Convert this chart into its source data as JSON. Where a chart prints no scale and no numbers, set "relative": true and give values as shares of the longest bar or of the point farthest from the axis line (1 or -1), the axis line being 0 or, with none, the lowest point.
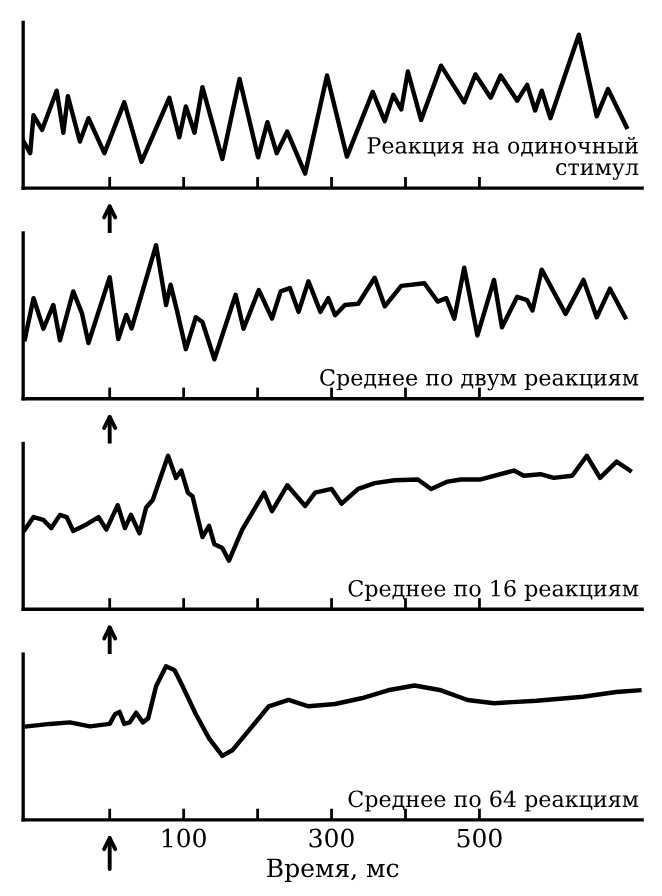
{
  "chart_data": [
    {
      "type": "line",
      "relative": true,
      "annotations": [
        "Реакция на одиночный\nстимул"
      ],
      "xlim": [
        -117,
        720
      ],
      "xticks": [
        {
          "value": 0,
          "label": null
        },
        {
          "value": 100,
          "label": null
        },
        {
          "value": 200,
          "label": null
        },
        {
          "value": 300,
          "label": null
        },
        {
          "value": 400,
          "label": null
        },
        {
          "value": 500,
          "label": null
        }
      ],
      "tick_labels": false,
      "grid": false,
      "marker": "none",
      "line_style": "solid",
      "series": [
        {
          "color": "#000000",
          "x": [
            -116.5,
            -107.5,
            -103,
            -91.4,
            -71.7,
            -62.7,
            -56.5,
            -40.3,
            -28.7,
            -7.2,
            19.7,
            43.0,
            80.6,
            94.1,
            103.0,
            114.7,
            125.4,
            152.3,
            175.6,
            200.7,
            213.3,
            225.8,
            240.1,
            264.3,
            293.9,
            320.8,
            355.7,
            371.9,
            383.5,
            394.3,
            403.2,
            421.1,
            448.0,
            479.4,
            494.6,
            515.2,
            528.7,
            551.1,
            564.5,
            575.3,
            584.2,
            595.9,
            634.4,
            658.6,
            673.8,
            698.9
          ],
          "values": [
            0.304,
            0.228,
            0.475,
            0.38,
            0.635,
            0.361,
            0.599,
            0.304,
            0.456,
            0.228,
            0.559,
            0.171,
            0.589,
            0.331,
            0.532,
            0.361,
            0.658,
            0.19,
            0.711,
            0.201,
            0.43,
            0.228,
            0.369,
            0.095,
            0.734,
            0.205,
            0.627,
            0.437,
            0.608,
            0.513,
            0.76,
            0.445,
            0.798,
            0.559,
            0.741,
            0.589,
            0.734,
            0.57,
            0.673,
            0.506,
            0.635,
            0.456,
            1.0,
            0.468,
            0.646,
            0.399
          ]
        }
      ]
    },
    {
      "type": "line",
      "relative": true,
      "annotations": [
        "Среднее по двум реакциям"
      ],
      "xlim": [
        -117,
        720
      ],
      "xticks": [
        {
          "value": 0,
          "label": null
        },
        {
          "value": 100,
          "label": null
        },
        {
          "value": 200,
          "label": null
        },
        {
          "value": 300,
          "label": null
        },
        {
          "value": 400,
          "label": null
        },
        {
          "value": 500,
          "label": null
        }
      ],
      "tick_labels": false,
      "grid": false,
      "marker": "none",
      "line_style": "solid",
      "series": [
        {
          "color": "#000000",
          "x": [
            -114.7,
            -103.0,
            -89.6,
            -76.2,
            -67.2,
            -49.3,
            -37.6,
            -28.7,
            0,
            11.6,
            22.4,
            29.6,
            62.7,
            76.2,
            82.4,
            91.4,
            103.0,
            116.5,
            125.4,
            141.6,
            170.3,
            181.0,
            201.6,
            219.5,
            231.2,
            243.7,
            255.4,
            268.8,
            284.9,
            295.7,
            304.7,
            318.1,
            336.0,
            358.4,
            371.9,
            394.3,
            425.6,
            443.5,
            455.2,
            466.0,
            479.4,
            497.3,
            519.7,
            530.5,
            551.1,
            564.5,
            571.7,
            584.2,
            616.5,
            640.7,
            658.6,
            676.5,
            697.1
          ],
          "values": [
            0.389,
            0.655,
            0.456,
            0.611,
            0.381,
            0.699,
            0.558,
            0.363,
            0.792,
            0.389,
            0.546,
            0.458,
            1.0,
            0.611,
            0.743,
            0.566,
            0.323,
            0.531,
            0.5,
            0.257,
            0.677,
            0.456,
            0.708,
            0.522,
            0.699,
            0.721,
            0.566,
            0.765,
            0.566,
            0.655,
            0.544,
            0.611,
            0.619,
            0.788,
            0.602,
            0.735,
            0.752,
            0.633,
            0.655,
            0.522,
            0.854,
            0.412,
            0.774,
            0.465,
            0.664,
            0.642,
            0.575,
            0.841,
            0.553,
            0.774,
            0.531,
            0.717,
            0.531
          ]
        }
      ]
    },
    {
      "type": "line",
      "relative": true,
      "annotations": [
        "Среднее по 16 реакциям"
      ],
      "xlim": [
        -117,
        720
      ],
      "xticks": [
        {
          "value": 0,
          "label": null
        },
        {
          "value": 100,
          "label": null
        },
        {
          "value": 200,
          "label": null
        },
        {
          "value": 300,
          "label": null
        },
        {
          "value": 400,
          "label": null
        },
        {
          "value": 500,
          "label": null
        }
      ],
      "tick_labels": false,
      "grid": false,
      "marker": "none",
      "line_style": "solid",
      "series": [
        {
          "color": "#000000",
          "x": [
            -114.7,
            -103.0,
            -89.6,
            -78.9,
            -67.2,
            -58.2,
            -49.3,
            -31.4,
            -15.2,
            -4.5,
            10.8,
            20.6,
            28.7,
            40.3,
            49.3,
            58.2,
            78.9,
            89.6,
            96.8,
            105.7,
            112.0,
            125.4,
            134.4,
            141.6,
            152.3,
            161.3,
            179.2,
            208.8,
            219.5,
            240.1,
            264.3,
            277.8,
            300.2,
            313.6,
            336.0,
            358.4,
            385.3,
            416.7,
            434.6,
            457.0,
            474.9,
            501.8,
            546.6,
            560.0,
            582.4,
            600.4,
            625.4,
            645.2,
            663.1,
            685.5,
            703.4
          ],
          "values": [
            0.519,
            0.601,
            0.582,
            0.529,
            0.615,
            0.601,
            0.51,
            0.553,
            0.601,
            0.519,
            0.678,
            0.529,
            0.615,
            0.495,
            0.663,
            0.712,
            1.0,
            0.856,
            0.904,
            0.76,
            0.736,
            0.471,
            0.543,
            0.423,
            0.399,
            0.317,
            0.519,
            0.76,
            0.639,
            0.808,
            0.673,
            0.76,
            0.784,
            0.688,
            0.784,
            0.822,
            0.841,
            0.846,
            0.784,
            0.832,
            0.846,
            0.846,
            0.904,
            0.87,
            0.88,
            0.856,
            0.87,
            1.0,
            0.856,
            0.962,
            0.904
          ]
        }
      ]
    },
    {
      "type": "line",
      "relative": true,
      "annotations": [
        "Среднее по 64 реакциям"
      ],
      "xlabel": "Время, мс",
      "xlim": [
        -117,
        720
      ],
      "xticks": [
        {
          "value": 0,
          "label": null
        },
        100,
        {
          "value": 200,
          "label": null
        },
        300,
        {
          "value": 400,
          "label": null
        },
        500
      ],
      "tick_labels": "x",
      "grid": false,
      "marker": "none",
      "line_style": "solid",
      "series": [
        {
          "color": "#000000",
          "x": [
            -112.0,
            -80.6,
            -53.8,
            -26.9,
            0,
            7.2,
            13.4,
            19.7,
            26.9,
            35.8,
            44.8,
            52.0,
            62.7,
            76.2,
            87.8,
            98.6,
            116.5,
            134.4,
            152.3,
            165.8,
            188.2,
            215.1,
            241.9,
            268.8,
            304.7,
            340.5,
            376.3,
            412.2,
            448.0,
            483.9,
            519.7,
            577.3,
            640.1,
            684.9,
            716.3
          ],
          "values": [
            0.609,
            0.625,
            0.635,
            0.609,
            0.625,
            0.688,
            0.703,
            0.625,
            0.635,
            0.698,
            0.635,
            0.661,
            0.87,
            1.0,
            0.974,
            0.87,
            0.688,
            0.531,
            0.417,
            0.453,
            0.583,
            0.74,
            0.781,
            0.74,
            0.755,
            0.792,
            0.844,
            0.875,
            0.844,
            0.781,
            0.76,
            0.776,
            0.802,
            0.833,
            0.844
          ]
        }
      ]
    }
  ]
}
